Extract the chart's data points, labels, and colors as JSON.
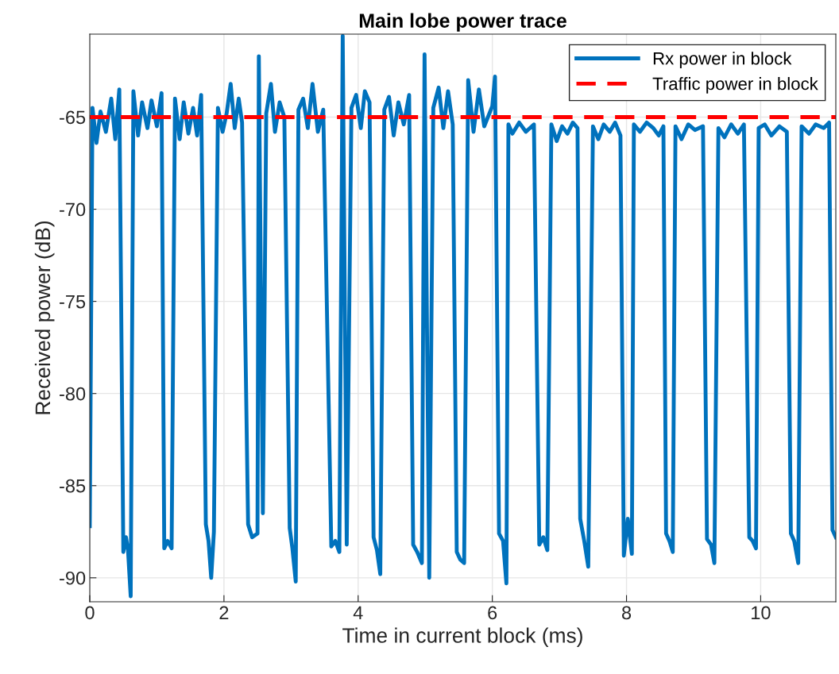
{
  "chart_data": {
    "type": "line",
    "title": "Main lobe power trace",
    "xlabel": "Time in current block (ms)",
    "ylabel": "Received power (dB)",
    "xlim": [
      0,
      11.12
    ],
    "xticks": [
      0,
      2,
      4,
      6,
      8,
      10
    ],
    "ylim": [
      -91.3,
      -60.5
    ],
    "yticks": [
      -90,
      -85,
      -80,
      -75,
      -70,
      -65
    ],
    "grid": true,
    "legend": "top right",
    "marker": "none",
    "series": [
      {
        "name": "Rx power in block",
        "color": "#0072bd",
        "line_style": "solid",
        "x": [
          0,
          0.04,
          0.1,
          0.16,
          0.24,
          0.32,
          0.38,
          0.44,
          0.5,
          0.54,
          0.57,
          0.61,
          0.65,
          0.72,
          0.78,
          0.86,
          0.92,
          1.0,
          1.07,
          1.11,
          1.16,
          1.22,
          1.27,
          1.34,
          1.4,
          1.47,
          1.54,
          1.6,
          1.66,
          1.73,
          1.77,
          1.81,
          1.85,
          1.91,
          1.98,
          2.04,
          2.1,
          2.16,
          2.22,
          2.27,
          2.36,
          2.42,
          2.5,
          2.52,
          2.58,
          2.63,
          2.7,
          2.76,
          2.83,
          2.9,
          2.98,
          3.02,
          3.07,
          3.11,
          3.18,
          3.25,
          3.32,
          3.4,
          3.48,
          3.6,
          3.66,
          3.72,
          3.77,
          3.83,
          3.9,
          3.97,
          4.04,
          4.1,
          4.17,
          4.23,
          4.28,
          4.33,
          4.39,
          4.46,
          4.53,
          4.6,
          4.68,
          4.76,
          4.82,
          4.88,
          4.95,
          4.99,
          5.06,
          5.12,
          5.2,
          5.27,
          5.34,
          5.41,
          5.47,
          5.52,
          5.58,
          5.64,
          5.72,
          5.8,
          5.88,
          6.0,
          6.04,
          6.1,
          6.16,
          6.21,
          6.24,
          6.3,
          6.4,
          6.5,
          6.62,
          6.7,
          6.76,
          6.82,
          6.88,
          6.96,
          7.04,
          7.12,
          7.2,
          7.27,
          7.31,
          7.37,
          7.43,
          7.5,
          7.58,
          7.66,
          7.75,
          7.83,
          7.91,
          7.96,
          8.02,
          8.08,
          8.11,
          8.2,
          8.3,
          8.4,
          8.48,
          8.55,
          8.59,
          8.64,
          8.69,
          8.73,
          8.82,
          8.92,
          9.02,
          9.14,
          9.2,
          9.26,
          9.31,
          9.37,
          9.46,
          9.56,
          9.66,
          9.75,
          9.83,
          9.88,
          9.93,
          9.97,
          10.06,
          10.16,
          10.28,
          10.39,
          10.45,
          10.5,
          10.56,
          10.61,
          10.72,
          10.82,
          10.94,
          11.02,
          11.07,
          11.12
        ],
        "values": [
          -87.2,
          -64.5,
          -66.4,
          -64.7,
          -65.8,
          -64.0,
          -66.2,
          -63.5,
          -88.6,
          -87.8,
          -88.5,
          -91.0,
          -63.6,
          -66.0,
          -64.2,
          -65.6,
          -64.1,
          -65.5,
          -63.7,
          -88.4,
          -88.0,
          -88.4,
          -64.0,
          -66.2,
          -64.2,
          -65.9,
          -64.5,
          -66.0,
          -63.8,
          -87.1,
          -88.0,
          -90.0,
          -87.5,
          -64.5,
          -65.8,
          -64.8,
          -63.2,
          -65.6,
          -64.0,
          -65.3,
          -87.1,
          -87.8,
          -87.6,
          -61.7,
          -86.5,
          -64.8,
          -63.2,
          -65.8,
          -64.2,
          -65.0,
          -87.3,
          -88.4,
          -90.2,
          -64.6,
          -64.0,
          -65.6,
          -63.2,
          -65.8,
          -64.6,
          -88.3,
          -88.0,
          -88.6,
          -60.6,
          -88.2,
          -64.5,
          -63.8,
          -65.6,
          -63.6,
          -64.2,
          -87.8,
          -88.5,
          -89.8,
          -64.6,
          -63.9,
          -66.0,
          -64.2,
          -65.4,
          -63.8,
          -88.2,
          -88.6,
          -89.2,
          -61.6,
          -90.0,
          -64.5,
          -63.4,
          -65.6,
          -63.6,
          -65.4,
          -88.6,
          -89.0,
          -89.2,
          -63.0,
          -65.8,
          -63.5,
          -65.5,
          -64.4,
          -62.8,
          -87.6,
          -88.0,
          -90.3,
          -65.4,
          -65.9,
          -65.3,
          -65.8,
          -65.4,
          -88.2,
          -87.8,
          -88.5,
          -65.4,
          -66.3,
          -65.5,
          -65.9,
          -65.3,
          -65.6,
          -86.8,
          -88.0,
          -89.4,
          -65.5,
          -66.2,
          -65.4,
          -65.8,
          -65.3,
          -66.0,
          -88.8,
          -86.8,
          -88.7,
          -65.4,
          -65.8,
          -65.3,
          -65.6,
          -66.0,
          -65.5,
          -87.6,
          -88.0,
          -88.6,
          -65.5,
          -66.2,
          -65.4,
          -65.7,
          -65.5,
          -87.9,
          -88.2,
          -89.2,
          -65.6,
          -66.1,
          -65.4,
          -65.9,
          -65.4,
          -87.8,
          -88.0,
          -88.4,
          -65.6,
          -65.4,
          -66.0,
          -65.5,
          -65.8,
          -87.6,
          -88.0,
          -89.2,
          -65.5,
          -65.9,
          -65.4,
          -65.6,
          -65.3,
          -87.4,
          -87.8
        ]
      },
      {
        "name": "Traffic power in block",
        "color": "#ff0000",
        "line_style": "dashed",
        "x": [
          0,
          11.12
        ],
        "values": [
          -65.0,
          -65.0
        ]
      }
    ]
  }
}
